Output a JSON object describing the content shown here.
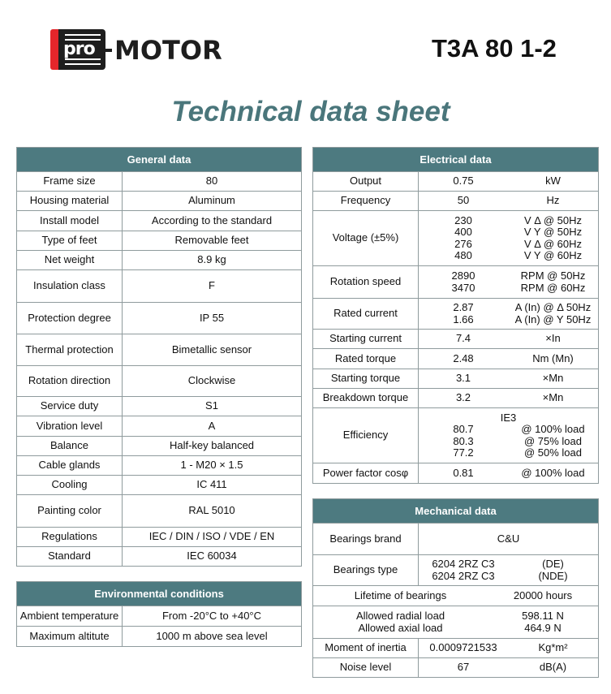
{
  "header": {
    "logo_text": "pro-MOTOR",
    "logo_pro": "pro",
    "logo_motor": "MOTOR",
    "model": "T3A 80 1-2",
    "title": "Technical data sheet"
  },
  "colors": {
    "header_bg": "#4d7a80",
    "title": "#4a767b",
    "logo_red": "#e4262b",
    "border": "#8f9b9d"
  },
  "general": {
    "title": "General data",
    "rows": [
      {
        "label": "Frame size",
        "value": "80"
      },
      {
        "label": "Housing material",
        "value": "Aluminum"
      },
      {
        "label": "Install model",
        "value": "According to the standard"
      },
      {
        "label": "Type of feet",
        "value": "Removable feet"
      },
      {
        "label": "Net weight",
        "value": "8.9 kg"
      },
      {
        "label": "Insulation class",
        "value": "F"
      },
      {
        "label": "Protection degree",
        "value": "IP 55"
      },
      {
        "label": "Thermal protection",
        "value": "Bimetallic sensor"
      },
      {
        "label": "Rotation direction",
        "value": "Clockwise"
      },
      {
        "label": "Service duty",
        "value": "S1"
      },
      {
        "label": "Vibration level",
        "value": "A"
      },
      {
        "label": "Balance",
        "value": "Half-key balanced"
      },
      {
        "label": "Cable glands",
        "value": "1 - M20 × 1.5"
      },
      {
        "label": "Cooling",
        "value": "IC 411"
      },
      {
        "label": "Painting color",
        "value": "RAL 5010"
      },
      {
        "label": "Regulations",
        "value": "IEC / DIN / ISO / VDE / EN"
      },
      {
        "label": "Standard",
        "value": "IEC 60034"
      }
    ]
  },
  "environmental": {
    "title": "Environmental conditions",
    "rows": [
      {
        "label": "Ambient temperature",
        "value": "From -20°C to +40°C"
      },
      {
        "label": "Maximum altitute",
        "value": "1000 m above sea level"
      }
    ]
  },
  "electrical": {
    "title": "Electrical data",
    "rows": [
      {
        "label": "Output",
        "values": [
          "0.75"
        ],
        "units": [
          "kW"
        ]
      },
      {
        "label": "Frequency",
        "values": [
          "50"
        ],
        "units": [
          "Hz"
        ]
      },
      {
        "label": "Voltage (±5%)",
        "values": [
          "230",
          "400",
          "276",
          "480"
        ],
        "units": [
          "V Δ @ 50Hz",
          "V Y @ 50Hz",
          "V Δ @ 60Hz",
          "V Y @ 60Hz"
        ]
      },
      {
        "label": "Rotation speed",
        "values": [
          "2890",
          "3470"
        ],
        "units": [
          "RPM @ 50Hz",
          "RPM @ 60Hz"
        ]
      },
      {
        "label": "Rated current",
        "values": [
          "2.87",
          "1.66"
        ],
        "units": [
          "A (In) @ Δ 50Hz",
          "A (In) @ Y 50Hz"
        ]
      },
      {
        "label": "Starting current",
        "values": [
          "7.4"
        ],
        "units": [
          "×In"
        ]
      },
      {
        "label": "Rated torque",
        "values": [
          "2.48"
        ],
        "units": [
          "Nm (Mn)"
        ]
      },
      {
        "label": "Starting torque",
        "values": [
          "3.1"
        ],
        "units": [
          "×Mn"
        ]
      },
      {
        "label": "Breakdown torque",
        "values": [
          "3.2"
        ],
        "units": [
          "×Mn"
        ]
      },
      {
        "label": "Efficiency",
        "heading": "IE3",
        "values": [
          "80.7",
          "80.3",
          "77.2"
        ],
        "units": [
          "@ 100% load",
          "@ 75% load",
          "@ 50% load"
        ]
      },
      {
        "label": "Power factor cosφ",
        "values": [
          "0.81"
        ],
        "units": [
          "@ 100% load"
        ]
      }
    ]
  },
  "mechanical": {
    "title": "Mechanical data",
    "rows": [
      {
        "label": "Bearings brand",
        "value": "C&U"
      },
      {
        "label": "Bearings type",
        "values": [
          "6204 2RZ C3",
          "6204 2RZ C3"
        ],
        "units": [
          "(DE)",
          "(NDE)"
        ]
      },
      {
        "labels": [
          "Lifetime of bearings"
        ],
        "values": [
          "20000 hours"
        ]
      },
      {
        "labels": [
          "Allowed radial load",
          "Allowed axial load"
        ],
        "values": [
          "598.11 N",
          "464.9 N"
        ]
      },
      {
        "label": "Moment of inertia",
        "values": [
          "0.0009721533"
        ],
        "units": [
          "Kg*m²"
        ]
      },
      {
        "label": "Noise level",
        "values": [
          "67"
        ],
        "units": [
          "dB(A)"
        ]
      }
    ]
  }
}
